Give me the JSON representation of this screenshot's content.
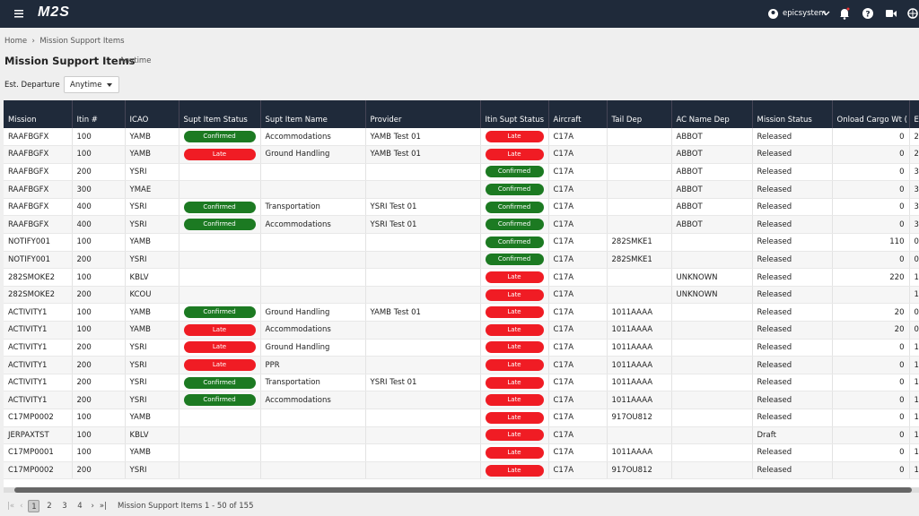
{
  "header": {
    "logo": "M2S",
    "user": "epicsystem"
  },
  "breadcrumb": [
    "Home",
    "Mission Support Items"
  ],
  "page": {
    "title": "Mission Support Items",
    "subtitle": "Anytime",
    "filter_label": "Est. Departure",
    "filter_value": "Anytime"
  },
  "table": {
    "columns": [
      "Mission",
      "Itin #",
      "ICAO",
      "Supt Item Status",
      "Supt Item Name",
      "Provider",
      "Itin Supt Status",
      "Aircraft",
      "Tail Dep",
      "AC Name Dep",
      "Mission Status",
      "Onload Cargo Wt (",
      "E"
    ],
    "rows": [
      [
        "RAAFBGFX",
        "100",
        "YAMB",
        "Confirmed",
        "Accommodations",
        "YAMB Test 01",
        "Late",
        "C17A",
        null,
        "ABBOT",
        "Released",
        "0",
        "2"
      ],
      [
        "RAAFBGFX",
        "100",
        "YAMB",
        "Late",
        "Ground Handling",
        "YAMB Test 01",
        "Late",
        "C17A",
        null,
        "ABBOT",
        "Released",
        "0",
        "2"
      ],
      [
        "RAAFBGFX",
        "200",
        "YSRI",
        null,
        null,
        null,
        "Confirmed",
        "C17A",
        null,
        "ABBOT",
        "Released",
        "0",
        "3"
      ],
      [
        "RAAFBGFX",
        "300",
        "YMAE",
        null,
        null,
        null,
        "Confirmed",
        "C17A",
        null,
        "ABBOT",
        "Released",
        "0",
        "3"
      ],
      [
        "RAAFBGFX",
        "400",
        "YSRI",
        "Confirmed",
        "Transportation",
        "YSRI Test 01",
        "Confirmed",
        "C17A",
        null,
        "ABBOT",
        "Released",
        "0",
        "3"
      ],
      [
        "RAAFBGFX",
        "400",
        "YSRI",
        "Confirmed",
        "Accommodations",
        "YSRI Test 01",
        "Confirmed",
        "C17A",
        null,
        "ABBOT",
        "Released",
        "0",
        "3"
      ],
      [
        "NOTIFY001",
        "100",
        "YAMB",
        null,
        null,
        null,
        "Confirmed",
        "C17A",
        "282SMKE1",
        null,
        "Released",
        "110",
        "0"
      ],
      [
        "NOTIFY001",
        "200",
        "YSRI",
        null,
        null,
        null,
        "Confirmed",
        "C17A",
        "282SMKE1",
        null,
        "Released",
        "0",
        "0"
      ],
      [
        "282SMOKE2",
        "100",
        "KBLV",
        null,
        null,
        null,
        "Late",
        "C17A",
        null,
        "UNKNOWN",
        "Released",
        "220",
        "1"
      ],
      [
        "282SMOKE2",
        "200",
        "KCOU",
        null,
        null,
        null,
        "Late",
        "C17A",
        null,
        "UNKNOWN",
        "Released",
        null,
        "1"
      ],
      [
        "ACTIVITY1",
        "100",
        "YAMB",
        "Confirmed",
        "Ground Handling",
        "YAMB Test 01",
        "Late",
        "C17A",
        "1011AAAA",
        null,
        "Released",
        "20",
        "0"
      ],
      [
        "ACTIVITY1",
        "100",
        "YAMB",
        "Late",
        "Accommodations",
        null,
        "Late",
        "C17A",
        "1011AAAA",
        null,
        "Released",
        "20",
        "0"
      ],
      [
        "ACTIVITY1",
        "200",
        "YSRI",
        "Late",
        "Ground Handling",
        null,
        "Late",
        "C17A",
        "1011AAAA",
        null,
        "Released",
        "0",
        "1"
      ],
      [
        "ACTIVITY1",
        "200",
        "YSRI",
        "Late",
        "PPR",
        null,
        "Late",
        "C17A",
        "1011AAAA",
        null,
        "Released",
        "0",
        "1"
      ],
      [
        "ACTIVITY1",
        "200",
        "YSRI",
        "Confirmed",
        "Transportation",
        "YSRI Test 01",
        "Late",
        "C17A",
        "1011AAAA",
        null,
        "Released",
        "0",
        "1"
      ],
      [
        "ACTIVITY1",
        "200",
        "YSRI",
        "Confirmed",
        "Accommodations",
        null,
        "Late",
        "C17A",
        "1011AAAA",
        null,
        "Released",
        "0",
        "1"
      ],
      [
        "C17MP0002",
        "100",
        "YAMB",
        null,
        null,
        null,
        "Late",
        "C17A",
        "917OU812",
        null,
        "Released",
        "0",
        "1"
      ],
      [
        "JERPAXTST",
        "100",
        "KBLV",
        null,
        null,
        null,
        "Late",
        "C17A",
        null,
        null,
        "Draft",
        "0",
        "1"
      ],
      [
        "C17MP0001",
        "100",
        "YAMB",
        null,
        null,
        null,
        "Late",
        "C17A",
        "1011AAAA",
        null,
        "Released",
        "0",
        "1"
      ],
      [
        "C17MP0002",
        "200",
        "YSRI",
        null,
        null,
        null,
        "Late",
        "C17A",
        "917OU812",
        null,
        "Released",
        "0",
        "1"
      ]
    ]
  },
  "pagination": {
    "pages": [
      "1",
      "2",
      "3",
      "4"
    ],
    "summary": "Mission Support Items 1 - 50 of 155"
  }
}
